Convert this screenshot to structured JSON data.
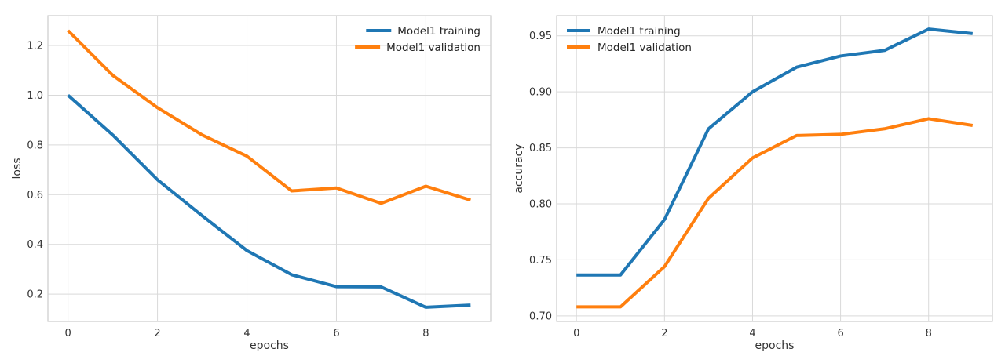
{
  "chart_data": [
    {
      "type": "line",
      "xlabel": "epochs",
      "ylabel": "loss",
      "x": [
        0,
        1,
        2,
        3,
        4,
        5,
        6,
        7,
        8,
        9
      ],
      "xlim": [
        -0.45,
        9.45
      ],
      "ylim": [
        0.09,
        1.32
      ],
      "xticks": [
        0,
        2,
        4,
        6,
        8
      ],
      "yticks": [
        0.2,
        0.4,
        0.6,
        0.8,
        1.0,
        1.2
      ],
      "ytick_labels": [
        "0.2",
        "0.4",
        "0.6",
        "0.8",
        "1.0",
        "1.2"
      ],
      "grid": true,
      "legend_position": "top-right",
      "series": [
        {
          "name": "Model1 training",
          "color": "#1f77b4",
          "values": [
            1.0,
            0.84,
            0.66,
            0.515,
            0.375,
            0.278,
            0.23,
            0.229,
            0.147,
            0.156
          ]
        },
        {
          "name": "Model1 validation",
          "color": "#ff7f0e",
          "values": [
            1.26,
            1.08,
            0.95,
            0.84,
            0.755,
            0.615,
            0.627,
            0.565,
            0.634,
            0.578
          ]
        }
      ]
    },
    {
      "type": "line",
      "xlabel": "epochs",
      "ylabel": "accuracy",
      "x": [
        0,
        1,
        2,
        3,
        4,
        5,
        6,
        7,
        8,
        9
      ],
      "xlim": [
        -0.45,
        9.45
      ],
      "ylim": [
        0.695,
        0.968
      ],
      "xticks": [
        0,
        2,
        4,
        6,
        8
      ],
      "yticks": [
        0.7,
        0.75,
        0.8,
        0.85,
        0.9,
        0.95
      ],
      "ytick_labels": [
        "0.70",
        "0.75",
        "0.80",
        "0.85",
        "0.90",
        "0.95"
      ],
      "grid": true,
      "legend_position": "top-left",
      "series": [
        {
          "name": "Model1 training",
          "color": "#1f77b4",
          "values": [
            0.7365,
            0.7365,
            0.786,
            0.867,
            0.9,
            0.922,
            0.932,
            0.937,
            0.956,
            0.952
          ]
        },
        {
          "name": "Model1 validation",
          "color": "#ff7f0e",
          "values": [
            0.708,
            0.708,
            0.744,
            0.805,
            0.841,
            0.861,
            0.862,
            0.867,
            0.876,
            0.87
          ]
        }
      ]
    }
  ]
}
